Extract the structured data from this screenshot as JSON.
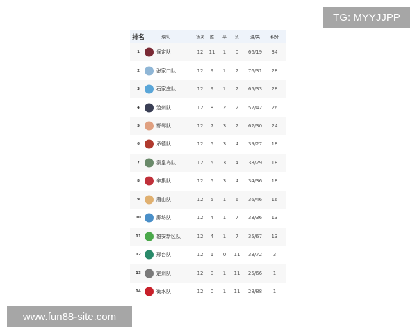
{
  "watermarks": {
    "top_right": "TG: MYYJJPP",
    "bottom_left": "www.fun88-site.com"
  },
  "headers": {
    "rank": "排名",
    "team": "球队",
    "played": "场次",
    "won": "胜",
    "drawn": "平",
    "lost": "负",
    "goals": "进/失",
    "points": "积分"
  },
  "rows": [
    {
      "rank": "1",
      "team": "保定队",
      "played": "12",
      "won": "11",
      "drawn": "1",
      "lost": "0",
      "goals": "66/19",
      "points": "34",
      "logo_color": "#7a2a35"
    },
    {
      "rank": "2",
      "team": "张家口队",
      "played": "12",
      "won": "9",
      "drawn": "1",
      "lost": "2",
      "goals": "76/31",
      "points": "28",
      "logo_color": "#8fb6d6"
    },
    {
      "rank": "3",
      "team": "石家庄队",
      "played": "12",
      "won": "9",
      "drawn": "1",
      "lost": "2",
      "goals": "65/33",
      "points": "28",
      "logo_color": "#5aa6d8"
    },
    {
      "rank": "4",
      "team": "沧州队",
      "played": "12",
      "won": "8",
      "drawn": "2",
      "lost": "2",
      "goals": "52/42",
      "points": "26",
      "logo_color": "#3a3f55"
    },
    {
      "rank": "5",
      "team": "邯郸队",
      "played": "12",
      "won": "7",
      "drawn": "3",
      "lost": "2",
      "goals": "62/30",
      "points": "24",
      "logo_color": "#e0a080"
    },
    {
      "rank": "6",
      "team": "承德队",
      "played": "12",
      "won": "5",
      "drawn": "3",
      "lost": "4",
      "goals": "39/27",
      "points": "18",
      "logo_color": "#b03a2e"
    },
    {
      "rank": "7",
      "team": "秦皇岛队",
      "played": "12",
      "won": "5",
      "drawn": "3",
      "lost": "4",
      "goals": "38/29",
      "points": "18",
      "logo_color": "#6a8a6a"
    },
    {
      "rank": "8",
      "team": "辛集队",
      "played": "12",
      "won": "5",
      "drawn": "3",
      "lost": "4",
      "goals": "34/36",
      "points": "18",
      "logo_color": "#c0303a"
    },
    {
      "rank": "9",
      "team": "唐山队",
      "played": "12",
      "won": "5",
      "drawn": "1",
      "lost": "6",
      "goals": "36/46",
      "points": "16",
      "logo_color": "#e0b070"
    },
    {
      "rank": "10",
      "team": "廊坊队",
      "played": "12",
      "won": "4",
      "drawn": "1",
      "lost": "7",
      "goals": "33/36",
      "points": "13",
      "logo_color": "#4a8fc8"
    },
    {
      "rank": "11",
      "team": "雄安新区队",
      "played": "12",
      "won": "4",
      "drawn": "1",
      "lost": "7",
      "goals": "35/67",
      "points": "13",
      "logo_color": "#4aa84a"
    },
    {
      "rank": "12",
      "team": "邢台队",
      "played": "12",
      "won": "1",
      "drawn": "0",
      "lost": "11",
      "goals": "33/72",
      "points": "3",
      "logo_color": "#2a8a6a"
    },
    {
      "rank": "13",
      "team": "定州队",
      "played": "12",
      "won": "0",
      "drawn": "1",
      "lost": "11",
      "goals": "25/66",
      "points": "1",
      "logo_color": "#7a7a7a"
    },
    {
      "rank": "14",
      "team": "衡水队",
      "played": "12",
      "won": "0",
      "drawn": "1",
      "lost": "11",
      "goals": "28/88",
      "points": "1",
      "logo_color": "#c8202a"
    }
  ]
}
